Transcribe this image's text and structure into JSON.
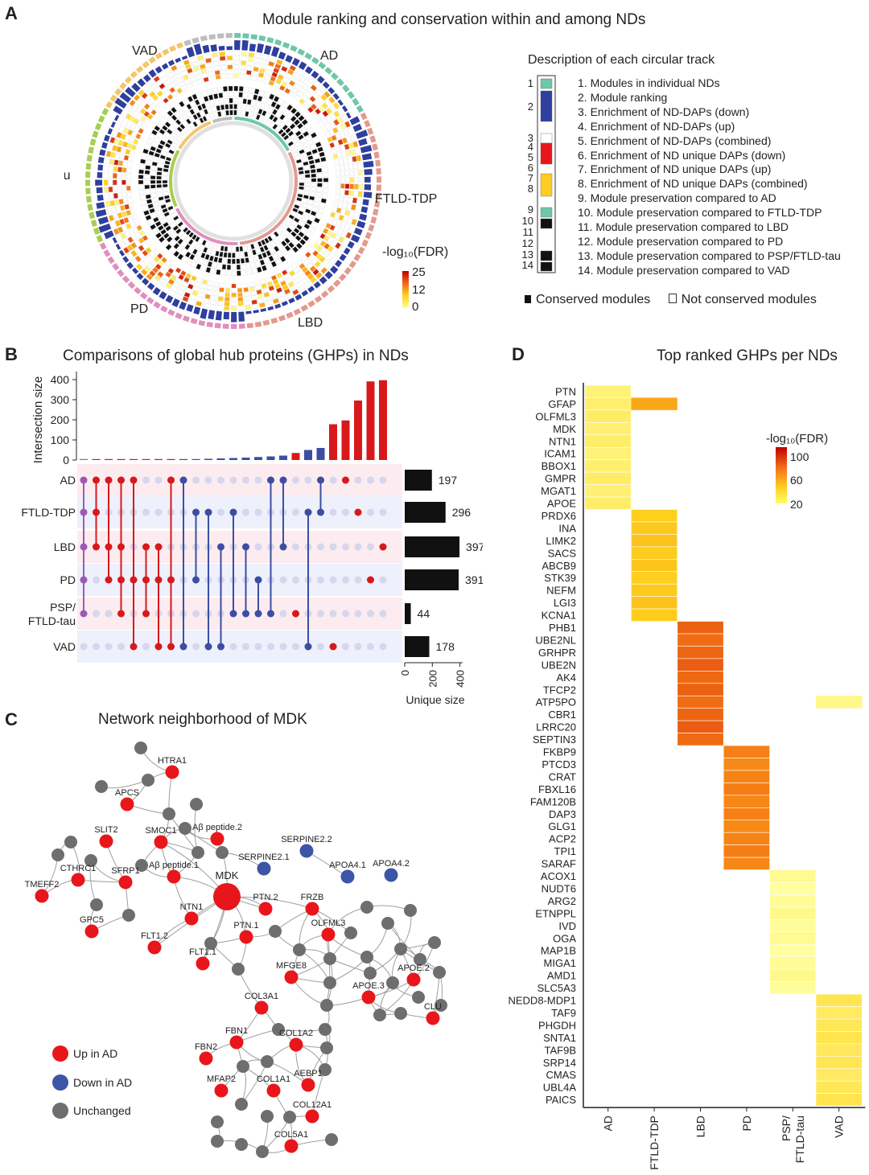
{
  "panelA": {
    "label": "A",
    "title": "Module ranking and conservation within and among NDs",
    "nds": [
      "AD",
      "FTLD-TDP",
      "LBD",
      "PD",
      "PSP/\nFTLD-tau",
      "VAD"
    ],
    "nd_colors": [
      "#6dc7a9",
      "#e29a8f",
      "#df8fbd",
      "#a6cf4f",
      "#f2c66a",
      "#bdbdbd"
    ],
    "legend_title": "-log₁₀(FDR)",
    "legend_ticks": [
      "25",
      "12",
      "0"
    ],
    "desc_title": "Description of each circular track",
    "track_numbers": [
      "1",
      "2",
      "3",
      "4",
      "5",
      "6",
      "7",
      "8",
      "9",
      "10",
      "11",
      "12",
      "13",
      "14"
    ],
    "tracks": [
      "1. Modules in individual NDs",
      "2. Module ranking",
      "3. Enrichment of ND-DAPs (down)",
      "4. Enrichment of ND-DAPs (up)",
      "5. Enrichment of ND-DAPs (combined)",
      "6. Enrichment of ND unique DAPs (down)",
      "7. Enrichment of ND unique DAPs (up)",
      "8. Enrichment of ND unique DAPs (combined)",
      "9. Module preservation compared to AD",
      "10. Module preservation compared to FTLD-TDP",
      "11. Module preservation compared to LBD",
      "12. Module preservation compared to PD",
      "13. Module preservation compared to PSP/FTLD-tau",
      "14. Module preservation compared to VAD"
    ],
    "conserved_label": "Conserved modules",
    "not_conserved_label": "Not conserved modules"
  },
  "panelB": {
    "label": "B",
    "title": "Comparisons of global hub proteins (GHPs) in NDs",
    "ylabel": "Intersection size",
    "xlabel": "Unique size",
    "sets": [
      "AD",
      "FTLD-TDP",
      "LBD",
      "PD",
      "PSP/\nFTLD-tau",
      "VAD"
    ],
    "unique_sizes": [
      197,
      296,
      397,
      391,
      44,
      178
    ],
    "intersection_sizes": [
      1,
      1,
      1,
      1,
      1,
      1,
      2,
      2,
      3,
      4,
      6,
      8,
      10,
      12,
      15,
      18,
      22,
      35,
      50,
      60,
      178,
      197,
      296,
      391,
      397
    ],
    "intersection_colors": [
      "purple",
      "red",
      "red",
      "red",
      "red",
      "red",
      "red",
      "red",
      "blue",
      "blue",
      "blue",
      "blue",
      "blue",
      "blue",
      "blue",
      "blue",
      "blue",
      "red",
      "blue",
      "blue",
      "red",
      "red",
      "red",
      "red",
      "red"
    ],
    "yticks": [
      0,
      100,
      200,
      300,
      400
    ],
    "unique_ticks": [
      0,
      200,
      400
    ]
  },
  "panelC": {
    "label": "C",
    "title": "Network neighborhood of MDK",
    "legend": [
      "Up in AD",
      "Down in AD",
      "Unchanged"
    ],
    "colors": {
      "up": "#e8161b",
      "down": "#3c55a5",
      "unchanged": "#6e6e6e"
    },
    "node_labels": [
      "HTRA1",
      "APCS",
      "SLIT2",
      "SMOC1",
      "Aβ peptide.2",
      "CTHRC1",
      "SFRP1",
      "Aβ peptide.1",
      "TMEFF2",
      "MDK",
      "GPC5",
      "NTN1",
      "FLT1.2",
      "FLT1.1",
      "PTN.1",
      "PTN.2",
      "SERPINE2.1",
      "SERPINE2.2",
      "APOA4.1",
      "APOA4.2",
      "FRZB",
      "OLFML3",
      "MFGE8",
      "APOE.2",
      "APOE.3",
      "CLU",
      "COL3A1",
      "FBN1",
      "COL1A2",
      "FBN2",
      "MFAP2",
      "COL1A1",
      "AEBP1",
      "COL12A1",
      "COL5A1"
    ]
  },
  "panelD": {
    "label": "D",
    "title": "Top ranked GHPs per NDs",
    "legend_title": "-log₁₀(FDR)",
    "legend_ticks": [
      "100",
      "60",
      "20"
    ],
    "columns": [
      "AD",
      "FTLD-TDP",
      "LBD",
      "PD",
      "PSP/\nFTLD-tau",
      "VAD"
    ],
    "groups": [
      {
        "col": 0,
        "proteins": [
          "PTN",
          "GFAP",
          "OLFML3",
          "MDK",
          "NTN1",
          "ICAM1",
          "BBOX1",
          "GMPR",
          "MGAT1",
          "APOE"
        ],
        "value": 30
      },
      {
        "col": 1,
        "proteins": [
          "PRDX6",
          "INA",
          "LIMK2",
          "SACS",
          "ABCB9",
          "STK39",
          "NEFM",
          "LGI3",
          "KCNA1"
        ],
        "value": 50
      },
      {
        "col": 2,
        "proteins": [
          "PHB1",
          "UBE2NL",
          "GRHPR",
          "UBE2N",
          "AK4",
          "TFCP2",
          "ATP5PO",
          "CBR1",
          "LRRC20",
          "SEPTIN3"
        ],
        "value": 78
      },
      {
        "col": 3,
        "proteins": [
          "FKBP9",
          "PTCD3",
          "CRAT",
          "FBXL16",
          "FAM120B",
          "DAP3",
          "GLG1",
          "ACP2",
          "TPI1",
          "SARAF"
        ],
        "value": 70
      },
      {
        "col": 4,
        "proteins": [
          "ACOX1",
          "NUDT6",
          "ARG2",
          "ETNPPL",
          "IVD",
          "OGA",
          "MAP1B",
          "MIGA1",
          "AMD1",
          "SLC5A3"
        ],
        "value": 22
      },
      {
        "col": 5,
        "proteins": [
          "NEDD8-MDP1",
          "TAF9",
          "PHGDH",
          "SNTA1",
          "TAF9B",
          "SRP14",
          "CMAS",
          "UBL4A",
          "PAICS"
        ],
        "value": 35
      }
    ],
    "extras": [
      {
        "protein": "GFAP",
        "col": 1,
        "value": 60
      },
      {
        "protein": "ATP5PO",
        "col": 5,
        "value": 25
      }
    ]
  }
}
